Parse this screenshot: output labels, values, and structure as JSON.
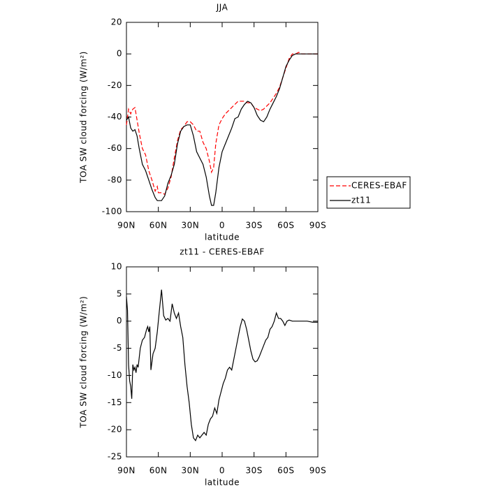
{
  "chart_data": [
    {
      "type": "line",
      "title": "JJA",
      "xlabel": "latitude",
      "ylabel": "TOA SW cloud forcing (W/m²)",
      "xlim": [
        90,
        -90
      ],
      "xticks": [
        {
          "value": 90,
          "label": "90N"
        },
        {
          "value": 60,
          "label": "60N"
        },
        {
          "value": 30,
          "label": "30N"
        },
        0,
        {
          "value": -30,
          "label": "30S"
        },
        {
          "value": -60,
          "label": "60S"
        },
        {
          "value": -90,
          "label": "90S"
        }
      ],
      "ylim": [
        -100,
        20
      ],
      "yticks": [
        -100,
        -80,
        -60,
        -40,
        -20,
        0,
        20
      ],
      "legend": "right",
      "x": [
        90,
        88,
        86,
        84,
        82,
        80,
        78,
        75,
        72,
        69,
        66,
        63,
        61,
        60,
        57,
        54,
        51,
        48,
        45,
        42,
        39,
        36,
        33,
        30,
        27,
        24,
        21,
        18,
        15,
        12,
        10,
        8,
        6,
        3,
        0,
        -3,
        -6,
        -9,
        -12,
        -15,
        -18,
        -21,
        -24,
        -27,
        -30,
        -33,
        -36,
        -39,
        -42,
        -45,
        -48,
        -51,
        -54,
        -57,
        -60,
        -63,
        -66,
        -69,
        -72,
        -75,
        -80,
        -85,
        -90
      ],
      "series": [
        {
          "name": "CERES-EBAF",
          "color": "#ff0000",
          "dash": true,
          "values": [
            -45,
            -35,
            -38,
            -35,
            -34,
            -42,
            -50,
            -60,
            -64,
            -74,
            -80,
            -87,
            -84,
            -88,
            -88,
            -89,
            -85,
            -78,
            -66,
            -55,
            -48,
            -46,
            -43,
            -43,
            -45,
            -49,
            -49,
            -56,
            -60,
            -68,
            -75,
            -72,
            -57,
            -45,
            -41,
            -38,
            -36,
            -34,
            -32,
            -30,
            -30,
            -30,
            -31,
            -31,
            -34,
            -35,
            -36,
            -35,
            -33,
            -31,
            -28,
            -25,
            -21,
            -15,
            -9,
            -3,
            0,
            0,
            1,
            0,
            0,
            0,
            0
          ]
        },
        {
          "name": "zt11",
          "color": "#000000",
          "dash": false,
          "values": [
            -42,
            -40,
            -47,
            -49,
            -48,
            -52,
            -60,
            -70,
            -74,
            -80,
            -86,
            -91,
            -93,
            -93,
            -93,
            -90,
            -82,
            -77,
            -70,
            -57,
            -49,
            -46,
            -45,
            -45,
            -52,
            -62,
            -66,
            -70,
            -78,
            -90,
            -96,
            -96,
            -88,
            -72,
            -62,
            -57,
            -52,
            -47,
            -41,
            -40,
            -35,
            -32,
            -30,
            -31,
            -34,
            -39,
            -42,
            -43,
            -40,
            -35,
            -31,
            -27,
            -22,
            -15,
            -8,
            -4,
            -1,
            0,
            0,
            0,
            0,
            0,
            0
          ]
        }
      ]
    },
    {
      "type": "line",
      "title": "zt11 - CERES-EBAF",
      "xlabel": "latitude",
      "ylabel": "TOA SW cloud forcing (W/m²)",
      "xlim": [
        90,
        -90
      ],
      "xticks": [
        {
          "value": 90,
          "label": "90N"
        },
        {
          "value": 60,
          "label": "60N"
        },
        {
          "value": 30,
          "label": "30N"
        },
        0,
        {
          "value": -30,
          "label": "30S"
        },
        {
          "value": -60,
          "label": "60S"
        },
        {
          "value": -90,
          "label": "90S"
        }
      ],
      "ylim": [
        -25,
        10
      ],
      "yticks": [
        -25,
        -20,
        -15,
        -10,
        -5,
        0,
        5,
        10
      ],
      "x": [
        90,
        89,
        88,
        87,
        86,
        85,
        84,
        83,
        82,
        81,
        80,
        79,
        77,
        75,
        73,
        71,
        70,
        69,
        68,
        67,
        65,
        63,
        61,
        59,
        57,
        55,
        53,
        51,
        49,
        47,
        45,
        43,
        41,
        39,
        37,
        35,
        33,
        31,
        29,
        27,
        25,
        23,
        21,
        19,
        17,
        15,
        13,
        11,
        9,
        7,
        5,
        3,
        1,
        -1,
        -3,
        -5,
        -7,
        -9,
        -11,
        -13,
        -15,
        -17,
        -19,
        -21,
        -23,
        -25,
        -27,
        -29,
        -31,
        -33,
        -35,
        -37,
        -39,
        -41,
        -43,
        -45,
        -47,
        -49,
        -51,
        -53,
        -55,
        -57,
        -59,
        -61,
        -63,
        -66,
        -70,
        -75,
        -80,
        -85,
        -90
      ],
      "series": [
        {
          "name": "zt11",
          "color": "#000000",
          "dash": false,
          "values": [
            4.5,
            2,
            -8,
            -11,
            -12,
            -14.3,
            -8,
            -9,
            -8.5,
            -9.5,
            -8,
            -8.5,
            -5,
            -3.5,
            -3,
            -1.5,
            -1,
            -2,
            -1,
            -9,
            -6,
            -5,
            -2,
            2,
            5.8,
            1,
            0.2,
            0.5,
            0,
            3.2,
            1.5,
            0.5,
            1.5,
            -1,
            -3,
            -8,
            -12,
            -15,
            -19,
            -21.5,
            -22,
            -21,
            -21.5,
            -21,
            -20.5,
            -21,
            -19,
            -18,
            -17.5,
            -16,
            -17,
            -14.5,
            -13,
            -11.5,
            -10.5,
            -9,
            -8.5,
            -9,
            -7,
            -5,
            -3,
            -1,
            0.4,
            0,
            -1.5,
            -3.5,
            -5.5,
            -7,
            -7.5,
            -7.3,
            -6.5,
            -5.5,
            -4.5,
            -3.5,
            -3,
            -1.5,
            -1,
            0,
            1.5,
            0.5,
            0.5,
            0,
            -0.8,
            0,
            0.2,
            0,
            0,
            0,
            0,
            -0.2,
            -0.2
          ]
        }
      ]
    }
  ]
}
